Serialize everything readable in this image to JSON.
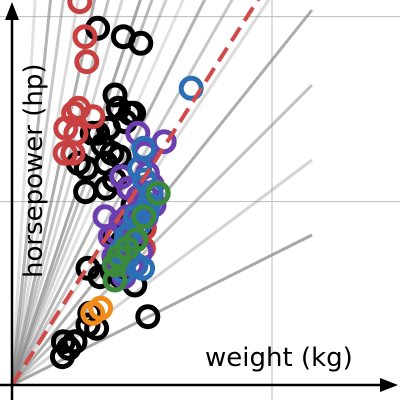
{
  "chart_data": {
    "type": "scatter",
    "title": "",
    "xlabel": "weight (kg)",
    "ylabel": "horsepower (hp)",
    "xlim": [
      0,
      2400
    ],
    "ylim": [
      0,
      240
    ],
    "grid": true,
    "colors": {
      "black": "#000000",
      "red": "#c94040",
      "purple": "#6b3fb0",
      "blue": "#2d6fb5",
      "green": "#3a8a3a",
      "orange": "#f08a1a",
      "ratio_line": "#888888",
      "fit_line": "#d04a4a"
    },
    "ratio_lines": [
      {
        "slope": 1.0
      },
      {
        "slope": 0.6
      },
      {
        "slope": 0.45
      },
      {
        "slope": 0.35
      },
      {
        "slope": 0.28
      },
      {
        "slope": 0.24
      },
      {
        "slope": 0.21
      },
      {
        "slope": 0.18
      },
      {
        "slope": 0.165
      },
      {
        "slope": 0.15
      },
      {
        "slope": 0.135
      },
      {
        "slope": 0.12
      },
      {
        "slope": 0.105
      },
      {
        "slope": 0.09
      },
      {
        "slope": 0.075
      },
      {
        "slope": 0.06
      },
      {
        "slope": 0.045
      },
      {
        "slope": 0.03
      }
    ],
    "fit_line": {
      "slope": 0.094,
      "intercept": 0
    },
    "series": [
      {
        "color": "black",
        "points": [
          [
            856,
            214
          ],
          [
            1114,
            209
          ],
          [
            1288,
            205
          ],
          [
            1030,
            174
          ],
          [
            1180,
            163
          ],
          [
            1063,
            166
          ],
          [
            1132,
            158
          ],
          [
            1216,
            163
          ],
          [
            802,
            151
          ],
          [
            964,
            154
          ],
          [
            640,
            151
          ],
          [
            856,
            151
          ],
          [
            910,
            144
          ],
          [
            1000,
            139
          ],
          [
            1072,
            137
          ],
          [
            1274,
            130
          ],
          [
            664,
            133
          ],
          [
            940,
            133
          ],
          [
            744,
            130
          ],
          [
            1024,
            123
          ],
          [
            736,
            116
          ],
          [
            940,
            118
          ],
          [
            1162,
            118
          ],
          [
            1210,
            108
          ],
          [
            1300,
            103
          ],
          [
            1164,
            96
          ],
          [
            1210,
            89
          ],
          [
            1274,
            92
          ],
          [
            1018,
            89
          ],
          [
            1102,
            86
          ],
          [
            760,
            70
          ],
          [
            880,
            65
          ],
          [
            1004,
            68
          ],
          [
            1090,
            65
          ],
          [
            1228,
            60
          ],
          [
            1358,
            41
          ],
          [
            778,
            43
          ],
          [
            760,
            36
          ],
          [
            846,
            34
          ],
          [
            514,
            26
          ],
          [
            630,
            26
          ],
          [
            568,
            22
          ],
          [
            504,
            17
          ]
        ]
      },
      {
        "color": "red",
        "points": [
          [
            678,
            230
          ],
          [
            730,
            209
          ],
          [
            748,
            194
          ],
          [
            616,
            163
          ],
          [
            664,
            166
          ],
          [
            810,
            161
          ],
          [
            538,
            154
          ],
          [
            640,
            151
          ],
          [
            532,
            139
          ],
          [
            610,
            139
          ],
          [
            1324,
            94
          ],
          [
            1314,
            82
          ]
        ]
      },
      {
        "color": "purple",
        "points": [
          [
            1258,
            151
          ],
          [
            1522,
            146
          ],
          [
            1330,
            139
          ],
          [
            1096,
            125
          ],
          [
            1354,
            127
          ],
          [
            1402,
            120
          ],
          [
            1168,
            118
          ],
          [
            1264,
            113
          ],
          [
            1348,
            113
          ],
          [
            1300,
            106
          ],
          [
            1342,
            101
          ],
          [
            1420,
            108
          ],
          [
            1156,
            101
          ],
          [
            1090,
            98
          ],
          [
            1204,
            96
          ],
          [
            930,
            101
          ],
          [
            1054,
            91
          ],
          [
            984,
            89
          ],
          [
            1126,
            84
          ],
          [
            1288,
            80
          ],
          [
            1018,
            77
          ],
          [
            1042,
            75
          ],
          [
            1108,
            72
          ],
          [
            1198,
            72
          ],
          [
            1120,
            65
          ]
        ]
      },
      {
        "color": "blue",
        "points": [
          [
            1792,
            178
          ],
          [
            1318,
            142
          ],
          [
            1276,
            130
          ],
          [
            1324,
            123
          ],
          [
            1390,
            115
          ],
          [
            1366,
            108
          ],
          [
            1348,
            103
          ],
          [
            1234,
            101
          ],
          [
            1270,
            96
          ],
          [
            1186,
            91
          ],
          [
            1144,
            89
          ],
          [
            1084,
            80
          ],
          [
            1168,
            77
          ],
          [
            1240,
            72
          ],
          [
            1306,
            70
          ],
          [
            1120,
            68
          ]
        ]
      },
      {
        "color": "green",
        "points": [
          [
            1462,
            115
          ],
          [
            1318,
            101
          ],
          [
            1240,
            87
          ],
          [
            1150,
            82
          ],
          [
            1066,
            77
          ],
          [
            1024,
            72
          ],
          [
            1030,
            63
          ]
        ]
      },
      {
        "color": "orange",
        "points": [
          [
            808,
            43
          ],
          [
            886,
            46
          ]
        ]
      }
    ]
  }
}
